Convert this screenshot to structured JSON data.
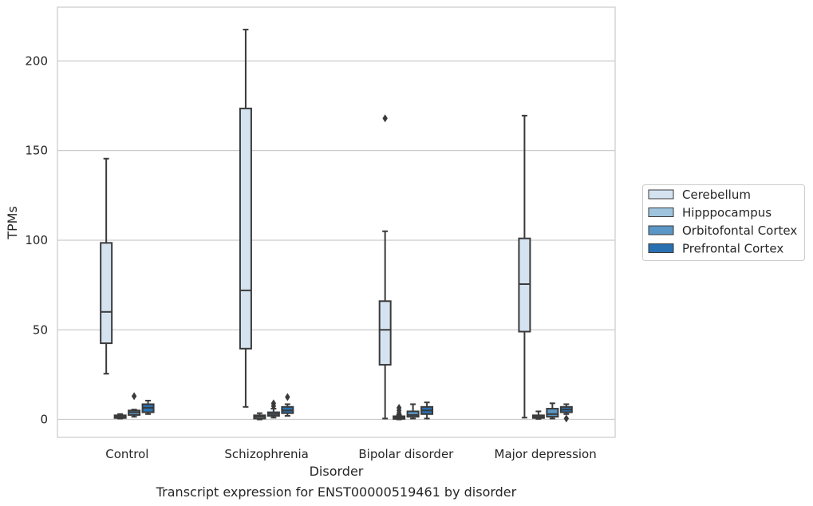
{
  "chart_data": {
    "type": "box",
    "caption": "Transcript expression for ENST00000519461 by disorder",
    "xlabel": "Disorder",
    "ylabel": "TPMs",
    "ylim": [
      -10,
      230
    ],
    "yticks": [
      0,
      50,
      100,
      150,
      200
    ],
    "grid": true,
    "legend_position": "right",
    "categories": [
      "Control",
      "Schizophrenia",
      "Bipolar disorder",
      "Major depression"
    ],
    "series": [
      {
        "name": "Cerebellum",
        "color": "#d5e3f1",
        "boxes": [
          {
            "whislo": 25.5,
            "q1": 42.5,
            "med": 60,
            "q3": 98.5,
            "whishi": 145.5,
            "fliers": []
          },
          {
            "whislo": 7,
            "q1": 39.5,
            "med": 72,
            "q3": 173.5,
            "whishi": 217.5,
            "fliers": []
          },
          {
            "whislo": 0.5,
            "q1": 30.5,
            "med": 50,
            "q3": 66,
            "whishi": 105,
            "fliers": [
              168
            ]
          },
          {
            "whislo": 1,
            "q1": 49,
            "med": 75.5,
            "q3": 101,
            "whishi": 169.5,
            "fliers": []
          }
        ]
      },
      {
        "name": "Hipppocampus",
        "color": "#9ec4de",
        "boxes": [
          {
            "whislo": 0.5,
            "q1": 0.8,
            "med": 1.5,
            "q3": 2.3,
            "whishi": 3,
            "fliers": []
          },
          {
            "whislo": 0,
            "q1": 0.5,
            "med": 1.5,
            "q3": 2.3,
            "whishi": 3.5,
            "fliers": []
          },
          {
            "whislo": 0,
            "q1": 0.3,
            "med": 1,
            "q3": 1.8,
            "whishi": 2.5,
            "fliers": [
              6.5,
              5,
              3.5
            ]
          },
          {
            "whislo": 0.3,
            "q1": 0.8,
            "med": 1.5,
            "q3": 2.3,
            "whishi": 4.5,
            "fliers": []
          }
        ]
      },
      {
        "name": "Orbitofontal Cortex",
        "color": "#5a96c6",
        "boxes": [
          {
            "whislo": 1.5,
            "q1": 2.5,
            "med": 4,
            "q3": 5,
            "whishi": 5.5,
            "fliers": [
              13
            ]
          },
          {
            "whislo": 1,
            "q1": 2,
            "med": 3,
            "q3": 4,
            "whishi": 6,
            "fliers": [
              9,
              7.5
            ]
          },
          {
            "whislo": 0.5,
            "q1": 1.5,
            "med": 2.5,
            "q3": 4.5,
            "whishi": 8.5,
            "fliers": []
          },
          {
            "whislo": 0.5,
            "q1": 1.5,
            "med": 3,
            "q3": 6,
            "whishi": 9,
            "fliers": []
          }
        ]
      },
      {
        "name": "Prefrontal Cortex",
        "color": "#2870b1",
        "boxes": [
          {
            "whislo": 3,
            "q1": 4,
            "med": 6.5,
            "q3": 8.5,
            "whishi": 10.5,
            "fliers": []
          },
          {
            "whislo": 2,
            "q1": 3.5,
            "med": 5,
            "q3": 7,
            "whishi": 8.5,
            "fliers": [
              12.5
            ]
          },
          {
            "whislo": 0.5,
            "q1": 3,
            "med": 5,
            "q3": 7,
            "whishi": 9.5,
            "fliers": []
          },
          {
            "whislo": 3,
            "q1": 4,
            "med": 5.5,
            "q3": 7,
            "whishi": 8.5,
            "fliers": [
              0.5
            ]
          }
        ]
      }
    ]
  }
}
